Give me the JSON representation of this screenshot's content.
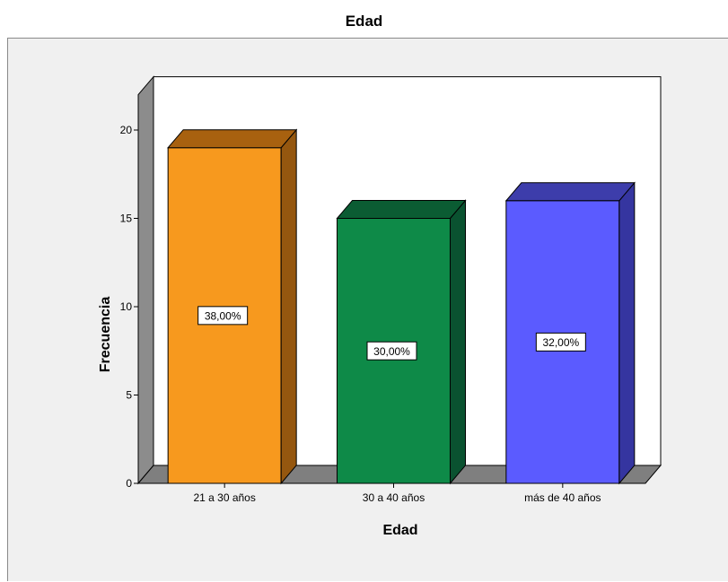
{
  "chart_data": {
    "type": "bar",
    "title": "Edad",
    "xlabel": "Edad",
    "ylabel": "Frecuencia",
    "categories": [
      "21 a 30 años",
      "30 a 40 años",
      "más de 40 años"
    ],
    "values": [
      19,
      15,
      16
    ],
    "data_labels": [
      "38,00%",
      "30,00%",
      "32,00%"
    ],
    "ylim": [
      0,
      22
    ],
    "yticks": [
      0,
      5,
      10,
      15,
      20
    ],
    "grid": false,
    "style": "3d",
    "colors": {
      "bars": [
        "#f7991e",
        "#0e8a48",
        "#5b5bff"
      ],
      "bar_side": [
        "#95570f",
        "#0a5230",
        "#3535a0"
      ],
      "bar_top": [
        "#a8610f",
        "#0b5c33",
        "#3d3dab"
      ],
      "floor": "#7f7f7f",
      "back_wall": "#ffffff",
      "side_wall": "#8c8c8c",
      "frame_bg": "#f0f0f0"
    }
  }
}
